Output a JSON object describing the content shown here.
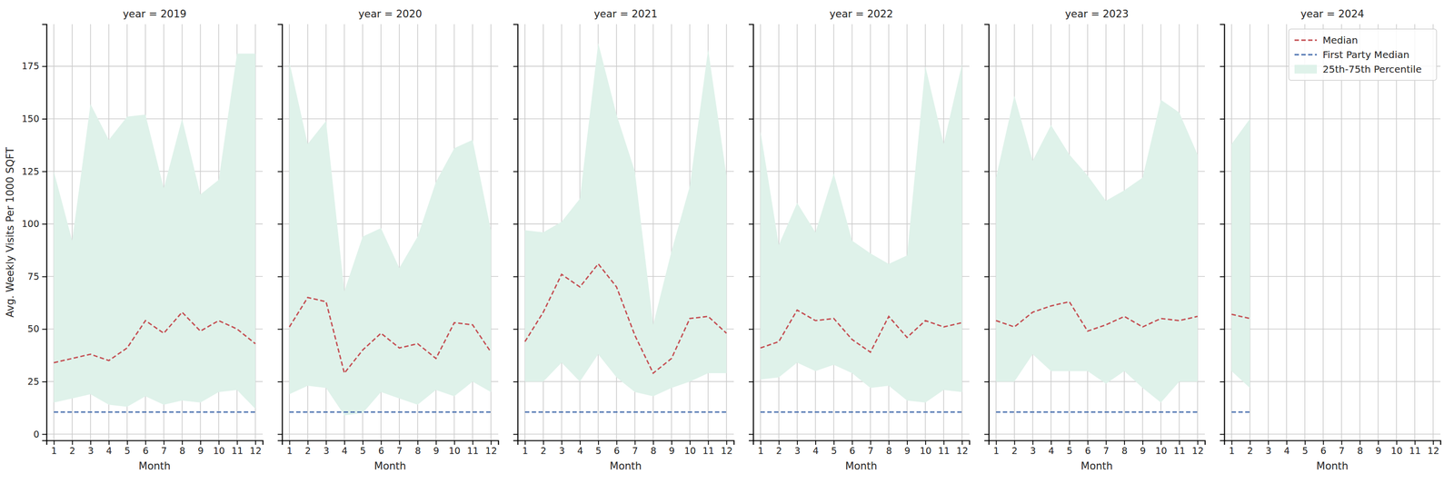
{
  "chart_data": [
    {
      "type": "line",
      "title": "year = 2019",
      "x_label": "Month",
      "y_label": "Avg. Weekly Visits Per 1000 SQFT",
      "x": [
        1,
        2,
        3,
        4,
        5,
        6,
        7,
        8,
        9,
        10,
        11,
        12
      ],
      "xlim": [
        0.6,
        12.4
      ],
      "xticks": [
        1,
        2,
        3,
        4,
        5,
        6,
        7,
        8,
        9,
        10,
        11,
        12
      ],
      "ylim": [
        -3,
        195
      ],
      "yticks": [
        0,
        25,
        50,
        75,
        100,
        125,
        150,
        175
      ],
      "grid": true,
      "series": [
        {
          "color": "#c44e52",
          "line_style": "dashed",
          "values": [
            34,
            36,
            38,
            35,
            41,
            54,
            48,
            58,
            49,
            54,
            50,
            43
          ]
        },
        {
          "color": "#4c72b0",
          "line_style": "dashed",
          "values": [
            10.5,
            10.5,
            10.5,
            10.5,
            10.5,
            10.5,
            10.5,
            10.5,
            10.5,
            10.5,
            10.5,
            10.5
          ]
        },
        {
          "type": "band",
          "color": "#dff2ea",
          "lower": [
            15,
            17,
            19,
            14,
            13,
            18,
            14,
            16,
            15,
            20,
            21,
            12
          ],
          "upper": [
            125,
            92,
            157,
            140,
            151,
            152,
            117,
            150,
            114,
            121,
            181,
            181
          ]
        }
      ]
    },
    {
      "type": "line",
      "title": "year = 2020",
      "x_label": "Month",
      "tick_labels": "x",
      "x": [
        1,
        2,
        3,
        4,
        5,
        6,
        7,
        8,
        9,
        10,
        11,
        12
      ],
      "xlim": [
        0.6,
        12.4
      ],
      "xticks": [
        1,
        2,
        3,
        4,
        5,
        6,
        7,
        8,
        9,
        10,
        11,
        12
      ],
      "ylim": [
        -3,
        195
      ],
      "yticks": [
        0,
        25,
        50,
        75,
        100,
        125,
        150,
        175
      ],
      "grid": true,
      "series": [
        {
          "color": "#c44e52",
          "line_style": "dashed",
          "values": [
            51,
            65,
            63,
            29,
            40,
            48,
            41,
            43,
            36,
            53,
            52,
            39
          ]
        },
        {
          "color": "#4c72b0",
          "line_style": "dashed",
          "values": [
            10.5,
            10.5,
            10.5,
            10.5,
            10.5,
            10.5,
            10.5,
            10.5,
            10.5,
            10.5,
            10.5,
            10.5
          ]
        },
        {
          "type": "band",
          "color": "#dff2ea",
          "lower": [
            19,
            23,
            22,
            9,
            10,
            20,
            17,
            14,
            21,
            18,
            25,
            20
          ],
          "upper": [
            177,
            138,
            149,
            68,
            94,
            98,
            79,
            94,
            120,
            136,
            140,
            97
          ]
        }
      ]
    },
    {
      "type": "line",
      "title": "year = 2021",
      "x_label": "Month",
      "tick_labels": "x",
      "x": [
        1,
        2,
        3,
        4,
        5,
        6,
        7,
        8,
        9,
        10,
        11,
        12
      ],
      "xlim": [
        0.6,
        12.4
      ],
      "xticks": [
        1,
        2,
        3,
        4,
        5,
        6,
        7,
        8,
        9,
        10,
        11,
        12
      ],
      "ylim": [
        -3,
        195
      ],
      "yticks": [
        0,
        25,
        50,
        75,
        100,
        125,
        150,
        175
      ],
      "grid": true,
      "series": [
        {
          "color": "#c44e52",
          "line_style": "dashed",
          "values": [
            44,
            58,
            76,
            70,
            81,
            70,
            47,
            29,
            36,
            55,
            56,
            48
          ]
        },
        {
          "color": "#4c72b0",
          "line_style": "dashed",
          "values": [
            10.5,
            10.5,
            10.5,
            10.5,
            10.5,
            10.5,
            10.5,
            10.5,
            10.5,
            10.5,
            10.5,
            10.5
          ]
        },
        {
          "type": "band",
          "color": "#dff2ea",
          "lower": [
            25,
            25,
            34,
            25,
            38,
            27,
            20,
            18,
            22,
            25,
            29,
            29
          ],
          "upper": [
            97,
            96,
            101,
            112,
            186,
            152,
            125,
            52,
            87,
            118,
            183,
            123
          ]
        }
      ]
    },
    {
      "type": "line",
      "title": "year = 2022",
      "x_label": "Month",
      "tick_labels": "x",
      "x": [
        1,
        2,
        3,
        4,
        5,
        6,
        7,
        8,
        9,
        10,
        11,
        12
      ],
      "xlim": [
        0.6,
        12.4
      ],
      "xticks": [
        1,
        2,
        3,
        4,
        5,
        6,
        7,
        8,
        9,
        10,
        11,
        12
      ],
      "ylim": [
        -3,
        195
      ],
      "yticks": [
        0,
        25,
        50,
        75,
        100,
        125,
        150,
        175
      ],
      "grid": true,
      "series": [
        {
          "color": "#c44e52",
          "line_style": "dashed",
          "values": [
            41,
            44,
            59,
            54,
            55,
            45,
            39,
            56,
            46,
            54,
            51,
            53
          ]
        },
        {
          "color": "#4c72b0",
          "line_style": "dashed",
          "values": [
            10.5,
            10.5,
            10.5,
            10.5,
            10.5,
            10.5,
            10.5,
            10.5,
            10.5,
            10.5,
            10.5,
            10.5
          ]
        },
        {
          "type": "band",
          "color": "#dff2ea",
          "lower": [
            26,
            27,
            34,
            30,
            33,
            29,
            22,
            23,
            16,
            15,
            21,
            20
          ],
          "upper": [
            144,
            90,
            110,
            96,
            124,
            92,
            86,
            81,
            85,
            175,
            138,
            176
          ]
        }
      ]
    },
    {
      "type": "line",
      "title": "year = 2023",
      "x_label": "Month",
      "tick_labels": "x",
      "x": [
        1,
        2,
        3,
        4,
        5,
        6,
        7,
        8,
        9,
        10,
        11,
        12
      ],
      "xlim": [
        0.6,
        12.4
      ],
      "xticks": [
        1,
        2,
        3,
        4,
        5,
        6,
        7,
        8,
        9,
        10,
        11,
        12
      ],
      "ylim": [
        -3,
        195
      ],
      "yticks": [
        0,
        25,
        50,
        75,
        100,
        125,
        150,
        175
      ],
      "grid": true,
      "series": [
        {
          "color": "#c44e52",
          "line_style": "dashed",
          "values": [
            54,
            51,
            58,
            61,
            63,
            49,
            52,
            56,
            51,
            55,
            54,
            56
          ]
        },
        {
          "color": "#4c72b0",
          "line_style": "dashed",
          "values": [
            10.5,
            10.5,
            10.5,
            10.5,
            10.5,
            10.5,
            10.5,
            10.5,
            10.5,
            10.5,
            10.5,
            10.5
          ]
        },
        {
          "type": "band",
          "color": "#dff2ea",
          "lower": [
            25,
            25,
            38,
            30,
            30,
            30,
            24,
            30,
            22,
            15,
            25,
            25
          ],
          "upper": [
            122,
            161,
            130,
            147,
            133,
            123,
            111,
            116,
            122,
            159,
            153,
            133
          ]
        }
      ]
    },
    {
      "type": "line",
      "title": "year = 2024",
      "x_label": "Month",
      "tick_labels": "x",
      "legend": "upper right",
      "x": [
        1,
        2,
        3,
        4,
        5,
        6,
        7,
        8,
        9,
        10,
        11,
        12
      ],
      "xlim": [
        0.6,
        12.4
      ],
      "xticks": [
        1,
        2,
        3,
        4,
        5,
        6,
        7,
        8,
        9,
        10,
        11,
        12
      ],
      "ylim": [
        -3,
        195
      ],
      "yticks": [
        0,
        25,
        50,
        75,
        100,
        125,
        150,
        175
      ],
      "grid": true,
      "series": [
        {
          "name": "Median",
          "color": "#c44e52",
          "line_style": "dashed",
          "values": [
            57,
            55,
            null,
            null,
            null,
            null,
            null,
            null,
            null,
            null,
            null,
            null
          ]
        },
        {
          "name": "First Party Median",
          "color": "#4c72b0",
          "line_style": "dashed",
          "values": [
            10.5,
            10.5,
            null,
            null,
            null,
            null,
            null,
            null,
            null,
            null,
            null,
            null
          ]
        },
        {
          "name": "25th-75th Percentile",
          "type": "band",
          "color": "#dff2ea",
          "lower": [
            30,
            22,
            null,
            null,
            null,
            null,
            null,
            null,
            null,
            null,
            null,
            null
          ],
          "upper": [
            138,
            150,
            null,
            null,
            null,
            null,
            null,
            null,
            null,
            null,
            null,
            null
          ]
        }
      ]
    }
  ]
}
